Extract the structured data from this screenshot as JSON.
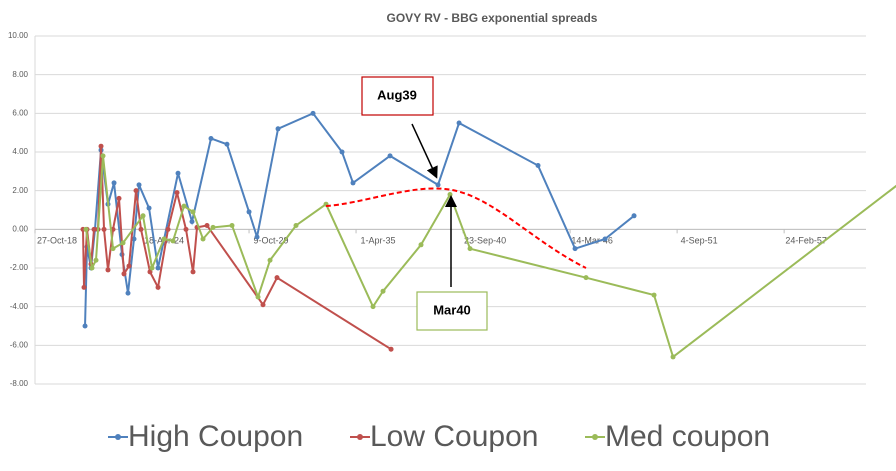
{
  "chart_data": {
    "type": "line",
    "title": "GOVY RV - BBG exponential spreads",
    "xlim": [
      43400,
      58930
    ],
    "xticks": [
      {
        "value": 43400,
        "label": "27-Oct-18"
      },
      {
        "value": 45400,
        "label": "18-Apr-24"
      },
      {
        "value": 47400,
        "label": "9-Oct-29"
      },
      {
        "value": 49400,
        "label": "1-Apr-35"
      },
      {
        "value": 51400,
        "label": "23-Sep-40"
      },
      {
        "value": 53400,
        "label": "14-Mar-46"
      },
      {
        "value": 55400,
        "label": "4-Sep-51"
      },
      {
        "value": 57400,
        "label": "24-Feb-57"
      }
    ],
    "ylim": [
      -8,
      10
    ],
    "yticks": [
      {
        "value": 10,
        "label": "10.00"
      },
      {
        "value": 8,
        "label": "8.00"
      },
      {
        "value": 6,
        "label": "6.00"
      },
      {
        "value": 4,
        "label": "4.00"
      },
      {
        "value": 2,
        "label": "2.00"
      },
      {
        "value": 0,
        "label": "0.00"
      },
      {
        "value": -2,
        "label": "-2.00"
      },
      {
        "value": -4,
        "label": "-4.00"
      },
      {
        "value": -6,
        "label": "-6.00"
      },
      {
        "value": -8,
        "label": "-8.00"
      }
    ],
    "grid": true,
    "legend": "bottom",
    "annotations": [
      "Aug39",
      "Mar40"
    ],
    "series": [
      {
        "name": "High Coupon",
        "color": "#4f81bd",
        "x": [
          44335,
          44372,
          44447,
          44521,
          44634,
          44764,
          44877,
          45026,
          45138,
          45250,
          45344,
          45531,
          45699,
          46073,
          46334,
          46689,
          46988,
          47400,
          47549,
          47942,
          48596,
          49138,
          49343,
          50035,
          50932,
          51325,
          52801,
          53493,
          54053,
          54595
        ],
        "values": [
          -5.0,
          -0.9,
          -2.0,
          0.0,
          4.1,
          1.3,
          2.4,
          -1.3,
          -3.3,
          -0.5,
          2.3,
          1.1,
          -2.0,
          2.9,
          0.4,
          4.7,
          4.4,
          0.9,
          -0.4,
          5.2,
          6.0,
          4.0,
          2.4,
          3.8,
          2.3,
          5.5,
          3.3,
          -1.0,
          -0.5,
          0.7
        ]
      },
      {
        "name": "Low Coupon",
        "color": "#c0504d",
        "x": [
          44297,
          44316,
          44372,
          44447,
          44503,
          44577,
          44634,
          44690,
          44764,
          44858,
          44970,
          45063,
          45157,
          45288,
          45381,
          45549,
          45699,
          45886,
          46054,
          46222,
          46353,
          46428,
          46615,
          47661,
          47923,
          50054
        ],
        "values": [
          0.0,
          -3.0,
          0.0,
          -1.8,
          0.0,
          0.0,
          4.3,
          0.0,
          -2.1,
          0.0,
          1.6,
          -2.3,
          -1.9,
          2.0,
          0.0,
          -2.2,
          -3.0,
          0.0,
          1.9,
          0.0,
          -2.2,
          0.1,
          0.2,
          -3.9,
          -2.5,
          -6.2
        ]
      },
      {
        "name": "Med coupon",
        "color": "#9bbb59",
        "x": [
          44353,
          44465,
          44540,
          44671,
          44858,
          45045,
          45419,
          45587,
          45811,
          45979,
          46185,
          46353,
          46540,
          46727,
          47082,
          47568,
          47792,
          48278,
          48839,
          49717,
          49904,
          50614,
          51156,
          51530,
          53698,
          54969,
          55324,
          59567
        ],
        "values": [
          0.0,
          -2.0,
          -1.6,
          3.8,
          -1.0,
          -0.7,
          0.7,
          -2.0,
          -0.5,
          -0.6,
          1.2,
          0.9,
          -0.5,
          0.1,
          0.2,
          -3.5,
          -1.6,
          0.2,
          1.3,
          -4.0,
          -3.2,
          -0.8,
          1.8,
          -1.0,
          -2.5,
          -3.4,
          -6.6,
          2.4
        ]
      }
    ]
  }
}
